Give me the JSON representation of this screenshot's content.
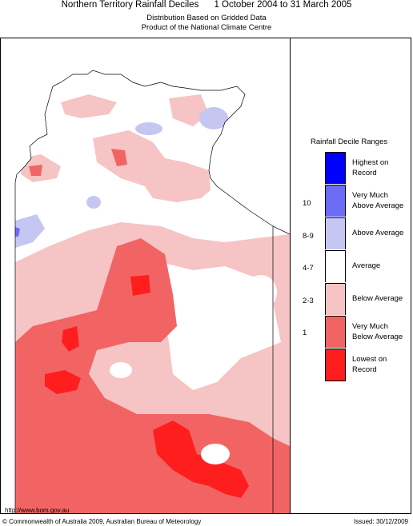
{
  "header": {
    "title": "Northern Territory Rainfall Deciles      1 October 2004 to 31 March 2005",
    "subtitle1": "Distribution Based on Gridded Data",
    "subtitle2": "Product of the National Climate Centre"
  },
  "legend": {
    "title": "Rainfall Decile Ranges",
    "items": [
      {
        "label_line1": "Highest on",
        "label_line2": "Record",
        "color": "#0000ff",
        "decile": ""
      },
      {
        "label_line1": "Very Much",
        "label_line2": "Above Average",
        "color": "#6b6bf5",
        "decile": "10"
      },
      {
        "label_line1": "Above Average",
        "label_line2": "",
        "color": "#c6c6f2",
        "decile": "8-9"
      },
      {
        "label_line1": "Average",
        "label_line2": "",
        "color": "#ffffff",
        "decile": "4-7"
      },
      {
        "label_line1": "Below Average",
        "label_line2": "",
        "color": "#f6c4c4",
        "decile": "2-3"
      },
      {
        "label_line1": "Very Much",
        "label_line2": "Below Average",
        "color": "#f26464",
        "decile": "1"
      },
      {
        "label_line1": "Lowest on",
        "label_line2": "Record",
        "color": "#ff1e1e",
        "decile": ""
      }
    ]
  },
  "footer": {
    "url": "http://www.bom.gov.au",
    "copyright": "© Commonwealth of Australia 2009, Australian Bureau of Meteorology",
    "issued": "Issued: 30/12/2009"
  },
  "colors": {
    "below_average": "#f6c4c4",
    "very_much_below": "#f26464",
    "lowest": "#ff1e1e",
    "above_average": "#c6c6f2",
    "very_much_above": "#6b6bf5"
  }
}
